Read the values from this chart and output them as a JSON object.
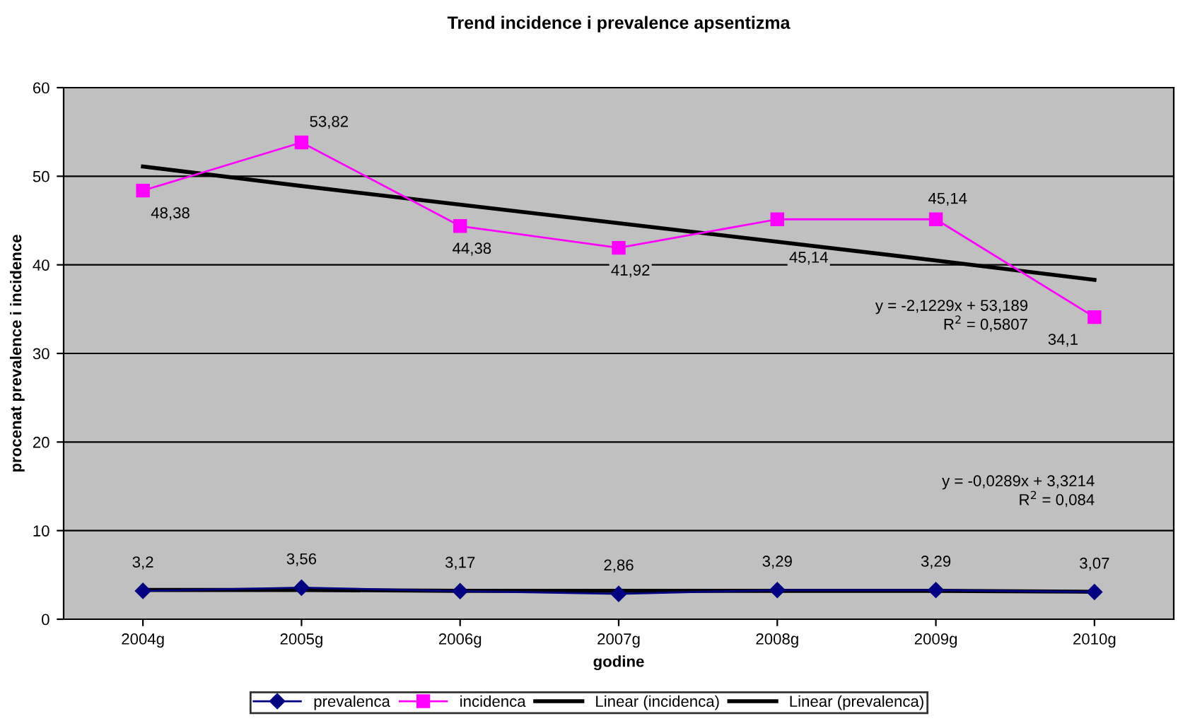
{
  "chart_data": {
    "type": "line",
    "title": "Trend incidence i prevalence apsentizma",
    "xlabel": "godine",
    "ylabel": "procenat prevalence i incidence",
    "categories": [
      "2004g",
      "2005g",
      "2006g",
      "2007g",
      "2008g",
      "2009g",
      "2010g"
    ],
    "series": [
      {
        "name": "prevalenca",
        "color": "#000080",
        "marker": "diamond",
        "values": [
          3.2,
          3.56,
          3.17,
          2.86,
          3.29,
          3.29,
          3.07
        ],
        "value_labels": [
          "3,2",
          "3,56",
          "3,17",
          "2,86",
          "3,29",
          "3,29",
          "3,07"
        ]
      },
      {
        "name": "incidenca",
        "color": "#ff00ff",
        "marker": "square",
        "values": [
          48.38,
          53.82,
          44.38,
          41.92,
          45.14,
          45.14,
          34.1
        ],
        "value_labels": [
          "48,38",
          "53,82",
          "44,38",
          "41,92",
          "45,14",
          "45,14",
          "34,1"
        ]
      },
      {
        "name": "Linear (incidenca)",
        "color": "#000000",
        "marker": "none",
        "values": [
          51.1,
          48.9,
          46.8,
          44.7,
          42.6,
          40.5,
          38.3
        ]
      },
      {
        "name": "Linear (prevalenca)",
        "color": "#000000",
        "marker": "none",
        "values": [
          3.3,
          3.3,
          3.2,
          3.2,
          3.2,
          3.2,
          3.1
        ]
      }
    ],
    "annotations": [
      "y = -2,1229x + 53,189\nR$^{2}$ = 0,5807",
      "y = -0,0289x + 3,3214\nR$^{2}$ = 0,084"
    ],
    "ylim": [
      0,
      60
    ],
    "yticks": [
      0,
      10,
      20,
      30,
      40,
      50,
      60
    ],
    "grid": "y",
    "legend": "bottom"
  }
}
